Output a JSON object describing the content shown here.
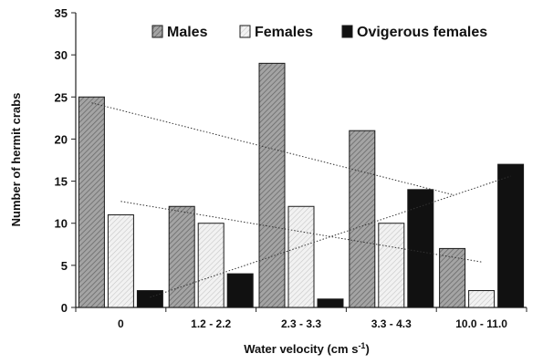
{
  "chart_data": {
    "type": "bar",
    "title": "",
    "xlabel": "Water velocity (cm s",
    "xlabel_sup": "-1",
    "xlabel_close": ")",
    "ylabel": "Number of hermit crabs",
    "ylim": [
      0,
      35
    ],
    "yticks": [
      0,
      5,
      10,
      15,
      20,
      25,
      30,
      35
    ],
    "categories": [
      "0",
      "1.2 - 2.2",
      "2.3 - 3.3",
      "3.3 - 4.3",
      "10.0 - 11.0"
    ],
    "series": [
      {
        "name": "Males",
        "values": [
          25,
          12,
          29,
          21,
          7
        ],
        "fill": "#9a9a9a",
        "pattern": "dense-diagonal"
      },
      {
        "name": "Females",
        "values": [
          11,
          10,
          12,
          10,
          2
        ],
        "fill": "#eaeaea",
        "pattern": "light-diagonal"
      },
      {
        "name": "Ovigerous females",
        "values": [
          2,
          4,
          1,
          14,
          17
        ],
        "fill": "#111111",
        "pattern": "solid"
      }
    ],
    "trendlines": [
      {
        "series": "Males",
        "from": [
          0,
          24.3
        ],
        "to": [
          4,
          13.4
        ],
        "style": "dotted"
      },
      {
        "series": "Females",
        "from": [
          0,
          12.6
        ],
        "to": [
          4,
          5.4
        ],
        "style": "dotted"
      },
      {
        "series": "Ovigerous females",
        "from": [
          0,
          1.2
        ],
        "to": [
          4,
          15.6
        ],
        "style": "dotted"
      }
    ],
    "grid": false,
    "legend_position": "top"
  }
}
